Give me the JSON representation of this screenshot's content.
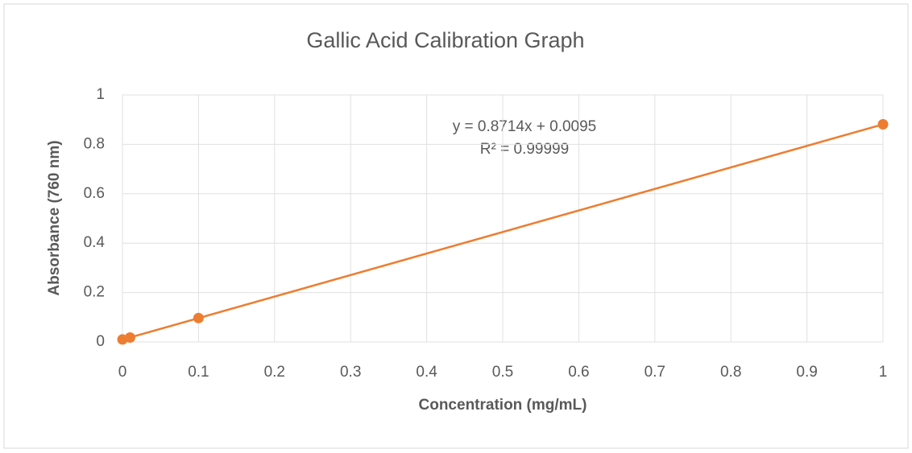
{
  "chart_data": {
    "type": "scatter",
    "title": "Gallic Acid Calibration Graph",
    "x_label": "Concentration (mg/mL)",
    "y_label": "Absorbance (760 nm)",
    "annotations": [
      "y = 0.8714x + 0.0095",
      "R² = 0.99999"
    ],
    "series": [
      {
        "name": null,
        "color": "#ed7d31",
        "x": [
          0,
          0.01,
          0.1,
          1
        ],
        "values": [
          0.01,
          0.018,
          0.097,
          0.881
        ]
      }
    ],
    "trendline": {
      "color": "#ed7d31",
      "x": [
        0,
        1
      ],
      "values": [
        0.0095,
        0.8809
      ]
    },
    "xlim": [
      0,
      1
    ],
    "xticks": [
      0,
      0.1,
      0.2,
      0.3,
      0.4,
      0.5,
      0.6,
      0.7,
      0.8,
      0.9,
      1
    ],
    "ylim": [
      0,
      1
    ],
    "yticks": [
      0,
      0.2,
      0.4,
      0.6,
      0.8,
      1
    ],
    "grid": true
  }
}
